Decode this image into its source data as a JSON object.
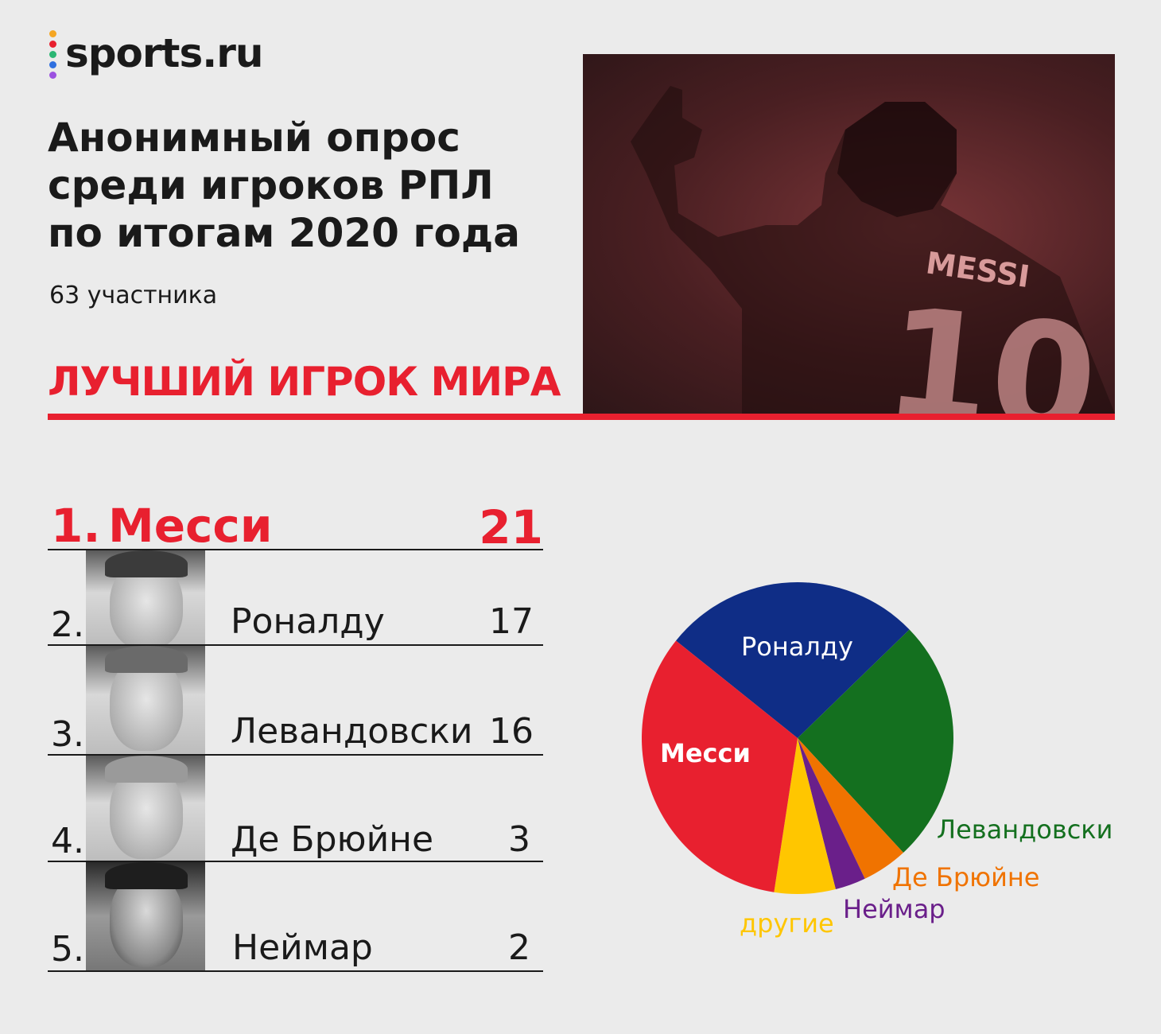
{
  "brand": {
    "name": "sports.ru",
    "dot_colors": [
      "#f5a623",
      "#e8202f",
      "#2bb673",
      "#2f6fdf",
      "#9b51e0"
    ]
  },
  "header": {
    "title_lines": [
      "Анонимный опрос",
      "среди игроков РПЛ",
      "по итогам 2020 года"
    ],
    "participants": "63 участника"
  },
  "section_title": "ЛУЧШИЙ ИГРОК МИРА",
  "photo": {
    "jersey_name": "MESSI",
    "jersey_number": "10"
  },
  "ranking": [
    {
      "rank": "1.",
      "name": "Месси",
      "votes": "21"
    },
    {
      "rank": "2.",
      "name": "Роналду",
      "votes": "17"
    },
    {
      "rank": "3.",
      "name": "Левандовски",
      "votes": "16"
    },
    {
      "rank": "4.",
      "name": "Де Брюйне",
      "votes": "3"
    },
    {
      "rank": "5.",
      "name": "Неймар",
      "votes": "2"
    }
  ],
  "colors": {
    "accent": "#e8202f",
    "messi": "#e8202f",
    "ronaldo": "#0f2d86",
    "lewandowski": "#14701f",
    "debruyne": "#f07300",
    "neymar": "#6a1f8a",
    "others": "#ffc600"
  },
  "chart_data": {
    "type": "pie",
    "title": "",
    "slices": [
      {
        "label": "Месси",
        "value": 21,
        "color": "#e8202f"
      },
      {
        "label": "Роналду",
        "value": 17,
        "color": "#0f2d86"
      },
      {
        "label": "Левандовски",
        "value": 16,
        "color": "#14701f"
      },
      {
        "label": "Де Брюйне",
        "value": 3,
        "color": "#f07300"
      },
      {
        "label": "Неймар",
        "value": 2,
        "color": "#6a1f8a"
      },
      {
        "label": "другие",
        "value": 4,
        "color": "#ffc600"
      }
    ]
  }
}
